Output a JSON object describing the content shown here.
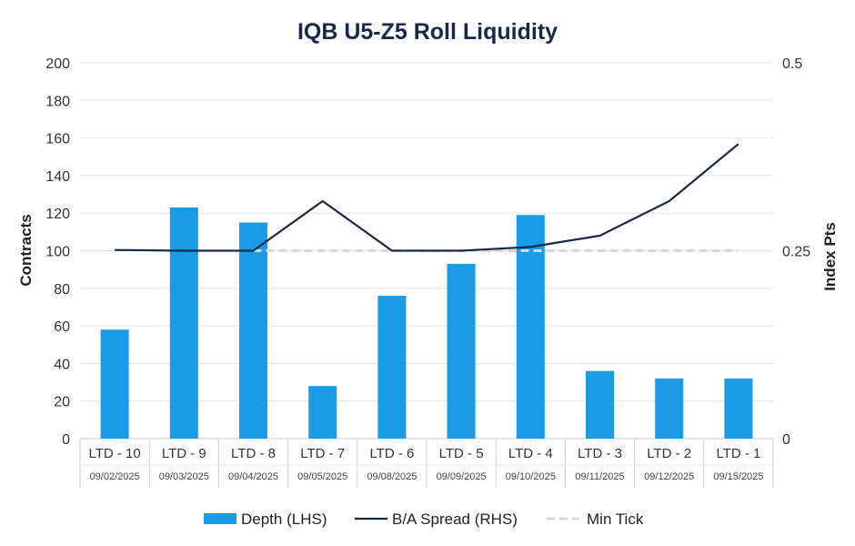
{
  "chart_data": {
    "type": "bar",
    "title": "IQB U5-Z5 Roll Liquidity",
    "categories": [
      "LTD - 10",
      "LTD - 9",
      "LTD - 8",
      "LTD - 7",
      "LTD - 6",
      "LTD - 5",
      "LTD - 4",
      "LTD - 3",
      "LTD - 2",
      "LTD - 1"
    ],
    "dates": [
      "09/02/2025",
      "09/03/2025",
      "09/04/2025",
      "09/05/2025",
      "09/08/2025",
      "09/09/2025",
      "09/10/2025",
      "09/11/2025",
      "09/12/2025",
      "09/15/2025"
    ],
    "ylabel": "Contracts",
    "y2label": "Index Pts",
    "ylim": [
      0,
      200
    ],
    "y2lim": [
      0,
      0.5
    ],
    "yticks": [
      "0",
      "20",
      "40",
      "60",
      "80",
      "100",
      "120",
      "140",
      "160",
      "180",
      "200"
    ],
    "y2ticks": [
      "0",
      "0.25",
      "0.5"
    ],
    "series": [
      {
        "name": "Depth (LHS)",
        "type": "bar",
        "axis": "left",
        "color": "#1b9be6",
        "values": [
          58,
          123,
          115,
          28,
          76,
          93,
          119,
          36,
          32,
          32
        ]
      },
      {
        "name": "B/A Spread (RHS)",
        "type": "line",
        "axis": "right",
        "color": "#16294a",
        "values": [
          0.251,
          0.25,
          0.25,
          0.316,
          0.25,
          0.25,
          0.255,
          0.27,
          0.316,
          0.392
        ]
      },
      {
        "name": "Min Tick",
        "type": "line",
        "style": "dashed",
        "axis": "right",
        "color": "#d9d6d6",
        "values": [
          null,
          null,
          0.25,
          0.25,
          0.25,
          0.25,
          0.25,
          0.25,
          0.25,
          0.25
        ]
      }
    ],
    "legend_position": "bottom",
    "grid": true
  }
}
